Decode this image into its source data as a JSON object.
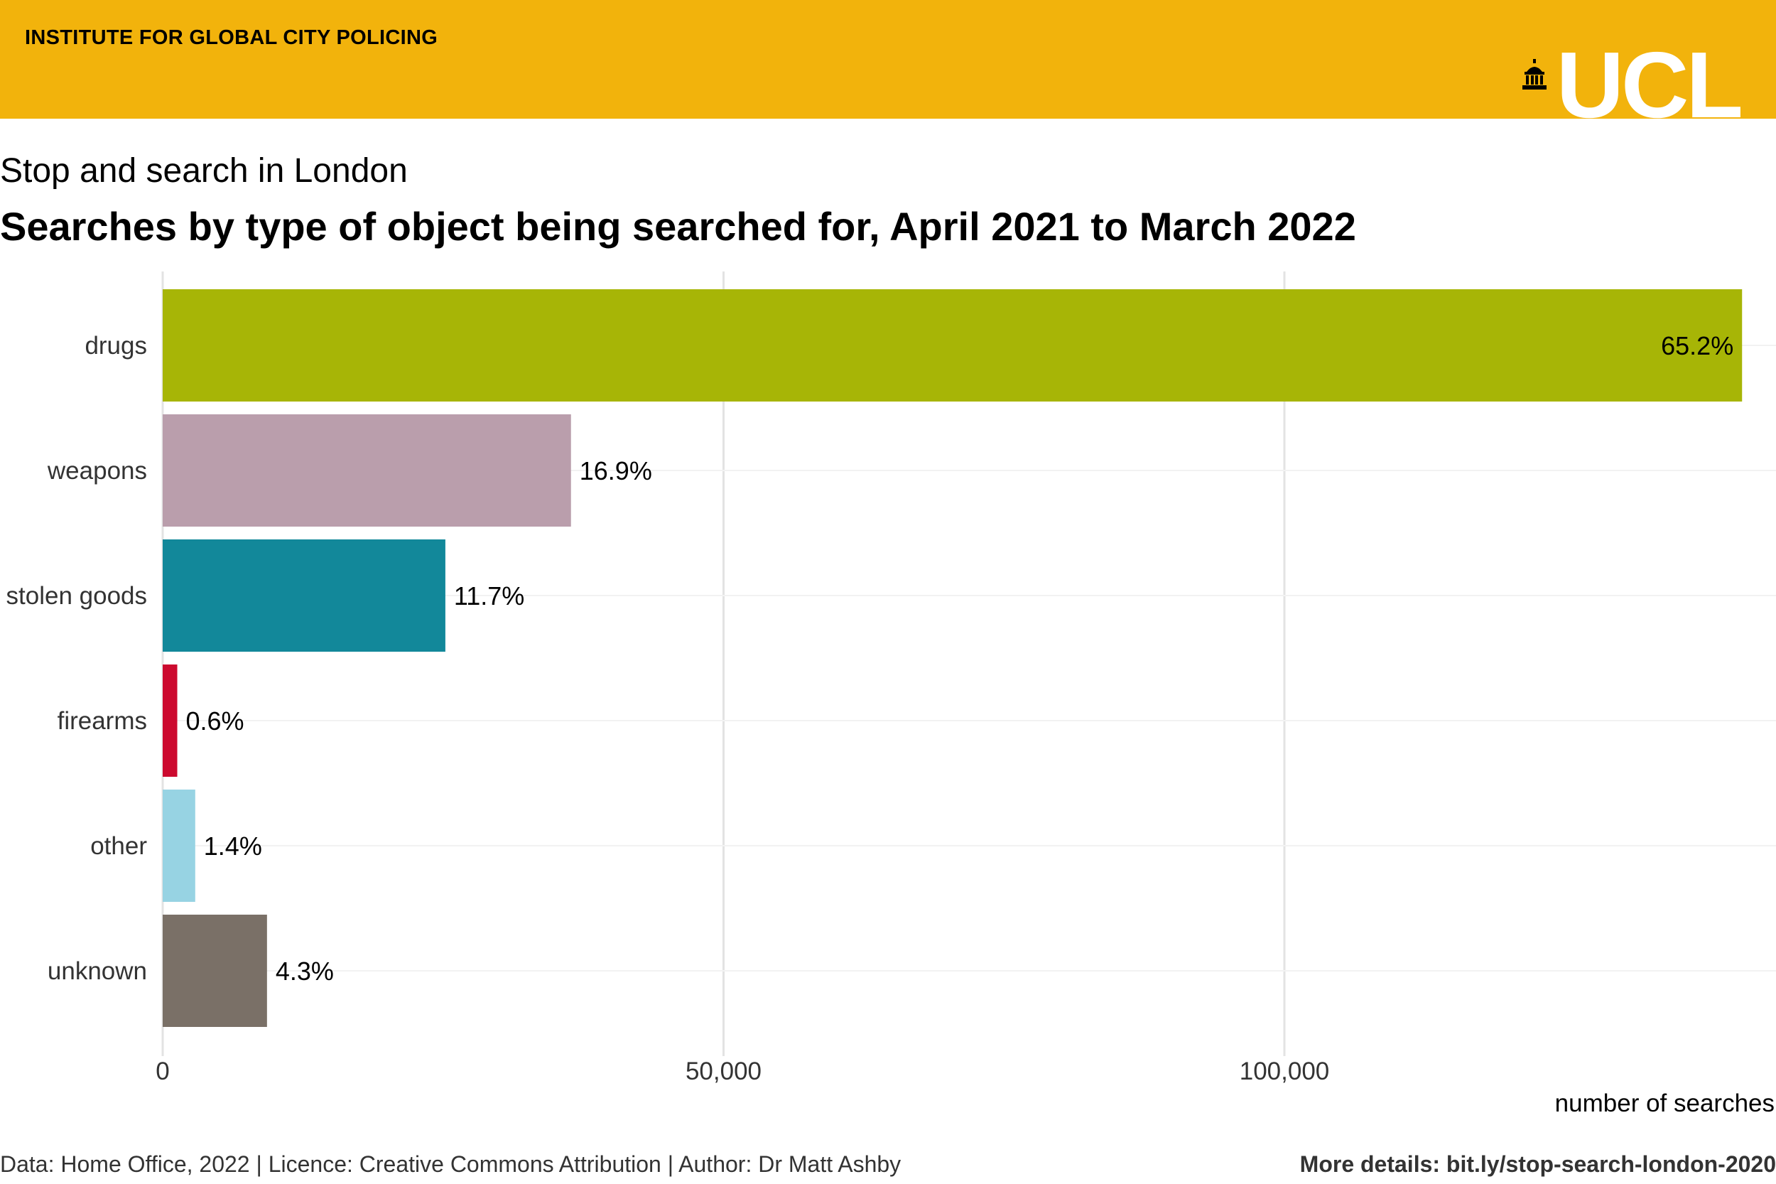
{
  "header": {
    "org": "INSTITUTE FOR GLOBAL CITY POLICING",
    "logo_text": "UCL",
    "logo_icon": "ucl-portico-dome-icon",
    "background": "#f2b30c"
  },
  "chart_data": {
    "type": "bar",
    "orientation": "horizontal",
    "subtitle": "Stop and search in London",
    "title": "Searches by type of object being searched for, April 2021 to March 2022",
    "xlabel": "number of searches",
    "ylabel": "",
    "xlim": [
      0,
      142000
    ],
    "x_ticks": [
      0,
      50000,
      100000
    ],
    "x_tick_labels": [
      "0",
      "50,000",
      "100,000"
    ],
    "grid": "vertical major",
    "categories": [
      "drugs",
      "weapons",
      "stolen goods",
      "firearms",
      "other",
      "unknown"
    ],
    "values": [
      140800,
      36400,
      25200,
      1300,
      2900,
      9300
    ],
    "labels": [
      "65.2%",
      "16.9%",
      "11.7%",
      "0.6%",
      "1.4%",
      "4.3%"
    ],
    "colors": [
      "#a7b506",
      "#ba9eac",
      "#12889a",
      "#cc0a2f",
      "#97d3e3",
      "#7a7067"
    ]
  },
  "footer": {
    "left": "Data: Home Office, 2022 | Licence: Creative Commons Attribution | Author: Dr Matt Ashby",
    "right": "More details: bit.ly/stop-search-london-2020"
  }
}
